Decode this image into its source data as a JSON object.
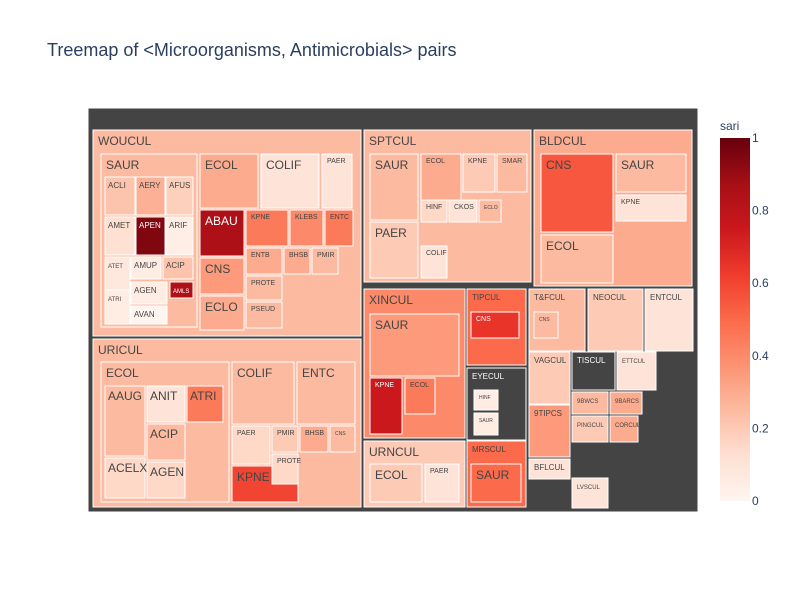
{
  "chart_data": {
    "type": "treemap",
    "title": "Treemap of <Microorganisms, Antimicrobials> pairs",
    "colorbar": {
      "title": "sari",
      "range": [
        0,
        1
      ],
      "ticks": [
        "0",
        "0.2",
        "0.4",
        "0.6",
        "0.8",
        "1"
      ],
      "colorscale": "Reds"
    },
    "specimens": [
      {
        "name": "WOUCUL",
        "sari": 0.25,
        "organisms": [
          {
            "name": "SAUR",
            "sari": 0.25,
            "antimicrobials": [
              {
                "name": "ACLI",
                "sari": 0.22
              },
              {
                "name": "AERY",
                "sari": 0.28
              },
              {
                "name": "AFUS",
                "sari": 0.18
              },
              {
                "name": "AMET",
                "sari": 0.12
              },
              {
                "name": "APEN",
                "sari": 0.95
              },
              {
                "name": "ARIF",
                "sari": 0.04
              },
              {
                "name": "ATET",
                "sari": 0.08
              },
              {
                "name": "AMUP",
                "sari": 0.05
              },
              {
                "name": "ACIP",
                "sari": 0.22
              },
              {
                "name": "ATRI",
                "sari": 0.05
              },
              {
                "name": "AGEN",
                "sari": 0.05
              },
              {
                "name": "AMLS",
                "sari": 0.85
              },
              {
                "name": "AVAN",
                "sari": 0.0
              }
            ]
          },
          {
            "name": "ECOL",
            "sari": 0.3
          },
          {
            "name": "COLIF",
            "sari": 0.1
          },
          {
            "name": "PAER",
            "sari": 0.1
          },
          {
            "name": "ABAU",
            "sari": 0.85
          },
          {
            "name": "KPNE",
            "sari": 0.45
          },
          {
            "name": "KLEBS",
            "sari": 0.4
          },
          {
            "name": "ENTC",
            "sari": 0.45
          },
          {
            "name": "CNS",
            "sari": 0.35
          },
          {
            "name": "ENTB",
            "sari": 0.3
          },
          {
            "name": "BHSB",
            "sari": 0.3
          },
          {
            "name": "PMIR",
            "sari": 0.25
          },
          {
            "name": "PROTE",
            "sari": 0.25
          },
          {
            "name": "ECLO",
            "sari": 0.3
          },
          {
            "name": "PSEUD",
            "sari": 0.25
          }
        ]
      },
      {
        "name": "URICUL",
        "sari": 0.25,
        "organisms": [
          {
            "name": "ECOL",
            "sari": 0.25,
            "antimicrobials": [
              {
                "name": "AAUG",
                "sari": 0.25
              },
              {
                "name": "ANIT",
                "sari": 0.1
              },
              {
                "name": "ATRI",
                "sari": 0.45
              },
              {
                "name": "ACIP",
                "sari": 0.25
              },
              {
                "name": "ACELX",
                "sari": 0.15
              },
              {
                "name": "AGEN",
                "sari": 0.15
              }
            ]
          },
          {
            "name": "COLIF",
            "sari": 0.25
          },
          {
            "name": "ENTC",
            "sari": 0.25
          },
          {
            "name": "PAER",
            "sari": 0.15
          },
          {
            "name": "PMIR",
            "sari": 0.2
          },
          {
            "name": "BHSB",
            "sari": 0.3
          },
          {
            "name": "CNS",
            "sari": 0.25
          },
          {
            "name": "KPNE",
            "sari": 0.6
          },
          {
            "name": "PROTE",
            "sari": 0.15
          }
        ]
      },
      {
        "name": "SPTCUL",
        "sari": 0.25,
        "organisms": [
          {
            "name": "SAUR",
            "sari": 0.25
          },
          {
            "name": "ECOL",
            "sari": 0.3
          },
          {
            "name": "KPNE",
            "sari": 0.2
          },
          {
            "name": "SMAR",
            "sari": 0.25
          },
          {
            "name": "HINF",
            "sari": 0.15
          },
          {
            "name": "CKOS",
            "sari": 0.1
          },
          {
            "name": "ECLO",
            "sari": 0.25
          },
          {
            "name": "PAER",
            "sari": 0.2
          },
          {
            "name": "COLIF",
            "sari": 0.1
          }
        ]
      },
      {
        "name": "BLDCUL",
        "sari": 0.3,
        "organisms": [
          {
            "name": "CNS",
            "sari": 0.55
          },
          {
            "name": "SAUR",
            "sari": 0.25
          },
          {
            "name": "KPNE",
            "sari": 0.1
          },
          {
            "name": "ECOL",
            "sari": 0.25
          }
        ]
      },
      {
        "name": "XINCUL",
        "sari": 0.4,
        "organisms": [
          {
            "name": "SAUR",
            "sari": 0.35
          },
          {
            "name": "KPNE",
            "sari": 0.75
          },
          {
            "name": "ECOL",
            "sari": 0.45
          }
        ]
      },
      {
        "name": "TIPCUL",
        "sari": 0.5,
        "organisms": [
          {
            "name": "CNS",
            "sari": 0.65
          }
        ]
      },
      {
        "name": "EYECUL",
        "sari": 0.05,
        "organisms": [
          {
            "name": "HINF",
            "sari": 0.05
          },
          {
            "name": "SAUR",
            "sari": 0.05
          }
        ]
      },
      {
        "name": "URNCUL",
        "sari": 0.2,
        "organisms": [
          {
            "name": "ECOL",
            "sari": 0.2
          },
          {
            "name": "PAER",
            "sari": 0.1
          }
        ]
      },
      {
        "name": "MRSCUL",
        "sari": 0.5,
        "organisms": [
          {
            "name": "SAUR",
            "sari": 0.5
          }
        ]
      },
      {
        "name": "T&FCUL",
        "sari": 0.25,
        "organisms": [
          {
            "name": "CNS",
            "sari": 0.25
          }
        ]
      },
      {
        "name": "NEOCUL",
        "sari": 0.2
      },
      {
        "name": "ENTCUL",
        "sari": 0.1
      },
      {
        "name": "VAGCUL",
        "sari": 0.2
      },
      {
        "name": "TISCUL",
        "sari": 0.05
      },
      {
        "name": "ETTCUL",
        "sari": 0.1
      },
      {
        "name": "9BWCS",
        "sari": 0.25
      },
      {
        "name": "9BARCS",
        "sari": 0.3
      },
      {
        "name": "9TIPCS",
        "sari": 0.35
      },
      {
        "name": "PINGCUL",
        "sari": 0.2
      },
      {
        "name": "CORCUL",
        "sari": 0.3
      },
      {
        "name": "BFLCUL",
        "sari": 0.1
      },
      {
        "name": "LVSCUL",
        "sari": 0.1
      }
    ]
  }
}
